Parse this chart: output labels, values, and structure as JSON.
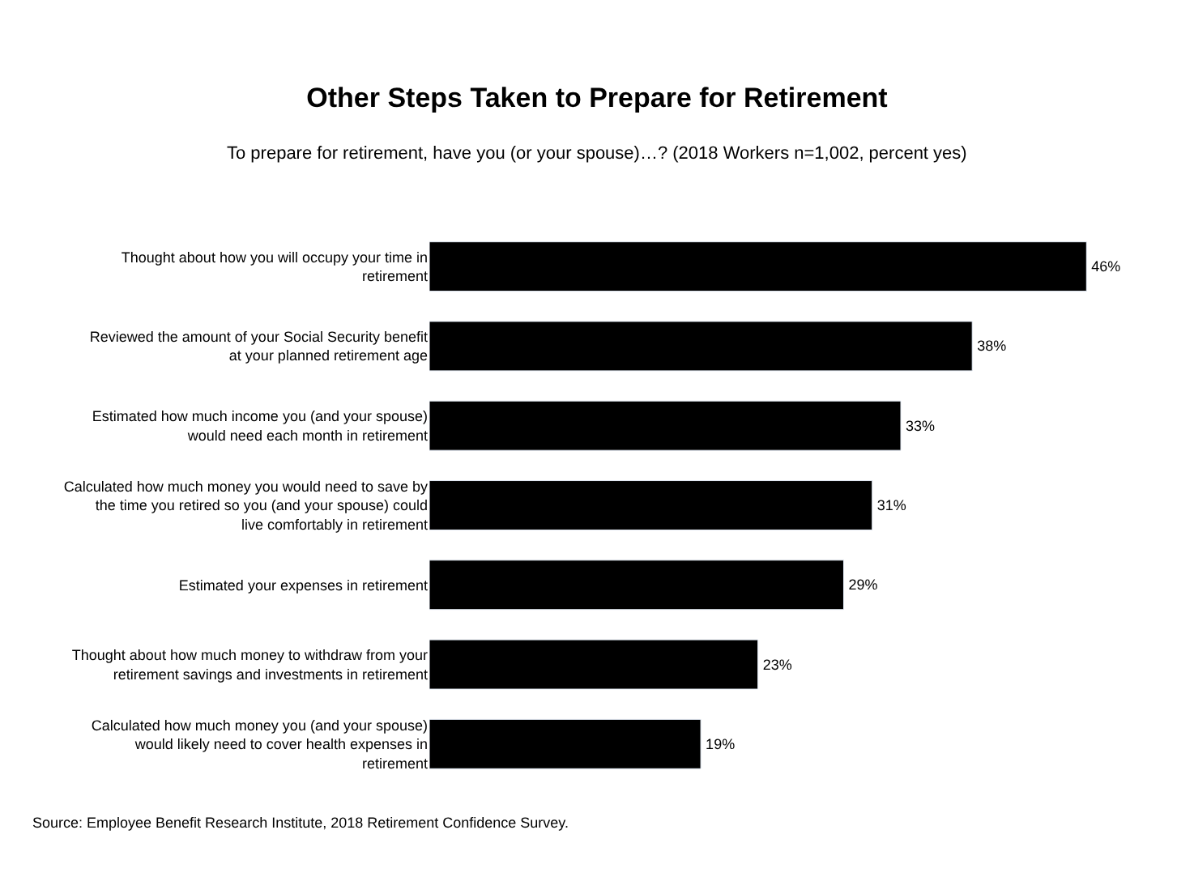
{
  "chart_data": {
    "type": "bar",
    "orientation": "horizontal",
    "title": "Other Steps Taken to Prepare for Retirement",
    "subtitle": "To prepare for retirement, have you (or your spouse)…? (2018 Workers n=1,002, percent yes)",
    "categories": [
      "Thought about how you will occupy your time in retirement",
      "Reviewed the amount of your Social Security benefit at your planned retirement age",
      "Estimated how much income you (and your spouse) would need each month in retirement",
      "Calculated how much money you would need to save by the time you retired so you (and your spouse) could live comfortably in retirement",
      "Estimated your expenses in retirement",
      "Thought about how much money to withdraw from your retirement savings and investments in retirement",
      "Calculated how much money you (and your spouse) would likely need to cover health expenses in retirement"
    ],
    "values": [
      46,
      38,
      33,
      31,
      29,
      23,
      19
    ],
    "value_labels": [
      "46%",
      "38%",
      "33%",
      "31%",
      "29%",
      "23%",
      "19%"
    ],
    "color": "#000000",
    "annotations": [
      "Source: Employee Benefit Research Institute, 2018 Retirement Confidence Survey."
    ]
  }
}
